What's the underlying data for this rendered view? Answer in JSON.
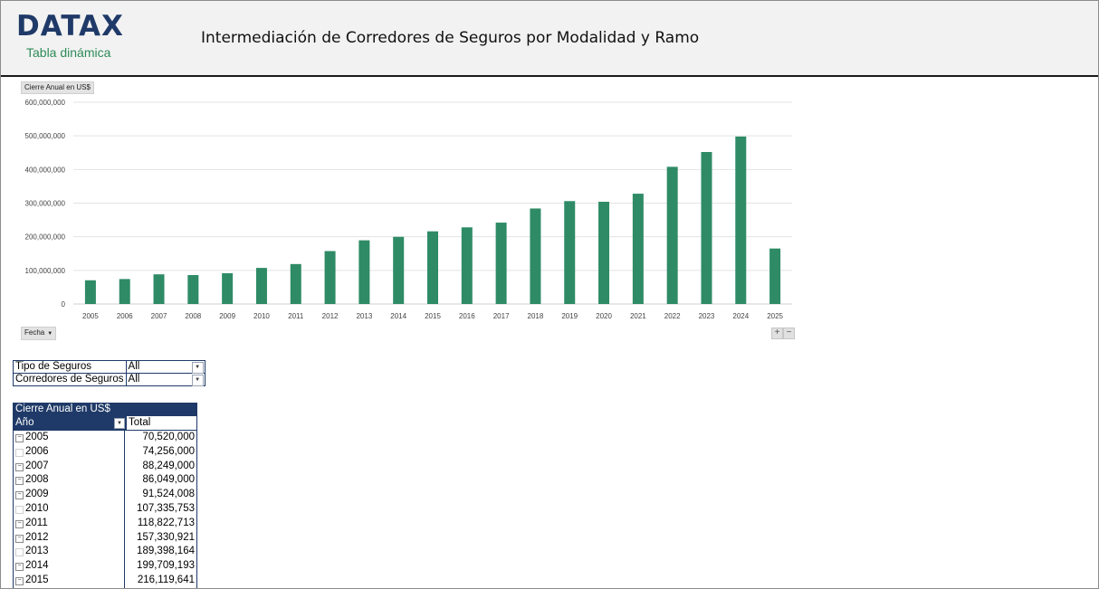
{
  "header": {
    "logo": "DATAX",
    "logo_sub": "Tabla dinámica",
    "title": "Intermediación de Corredores de Seguros por Modalidad y Ramo"
  },
  "chart_controls": {
    "value_field": "Cierre Anual en US$",
    "axis_field": "Fecha",
    "zoom_in": "+",
    "zoom_out": "−"
  },
  "chart_data": {
    "type": "bar",
    "title": "",
    "xlabel": "",
    "ylabel": "",
    "ylim": [
      0,
      600000000
    ],
    "yticks": [
      "0",
      "100,000,000",
      "200,000,000",
      "300,000,000",
      "400,000,000",
      "500,000,000",
      "600,000,000"
    ],
    "categories": [
      "2005",
      "2006",
      "2007",
      "2008",
      "2009",
      "2010",
      "2011",
      "2012",
      "2013",
      "2014",
      "2015",
      "2016",
      "2017",
      "2018",
      "2019",
      "2020",
      "2021",
      "2022",
      "2023",
      "2024",
      "2025"
    ],
    "values": [
      70520000,
      74256000,
      88249000,
      86049000,
      91524008,
      107335753,
      118822713,
      157330921,
      189398164,
      199709193,
      216119641,
      228000000,
      242000000,
      284000000,
      306000000,
      304000000,
      328000000,
      408000000,
      452000000,
      498000000,
      165000000
    ],
    "bar_color": "#2e8b66",
    "grid": true,
    "legend": "none"
  },
  "filters": [
    {
      "label": "Tipo de Seguros",
      "value": "All"
    },
    {
      "label": "Corredores de Seguros",
      "value": "All"
    }
  ],
  "pivot": {
    "header": "Cierre Anual en US$",
    "col_year": "Año",
    "col_total": "Total",
    "rows": [
      {
        "year": "2005",
        "total": "70,520,000"
      },
      {
        "year": "2006",
        "total": "74,256,000"
      },
      {
        "year": "2007",
        "total": "88,249,000"
      },
      {
        "year": "2008",
        "total": "86,049,000"
      },
      {
        "year": "2009",
        "total": "91,524,008"
      },
      {
        "year": "2010",
        "total": "107,335,753"
      },
      {
        "year": "2011",
        "total": "118,822,713"
      },
      {
        "year": "2012",
        "total": "157,330,921"
      },
      {
        "year": "2013",
        "total": "189,398,164"
      },
      {
        "year": "2014",
        "total": "199,709,193"
      },
      {
        "year": "2015",
        "total": "216,119,641"
      }
    ]
  },
  "colors": {
    "brand_navy": "#1f3a68",
    "brand_green": "#2e8b57",
    "bar_green": "#2e8b66",
    "header_bg": "#f2f2f2"
  }
}
